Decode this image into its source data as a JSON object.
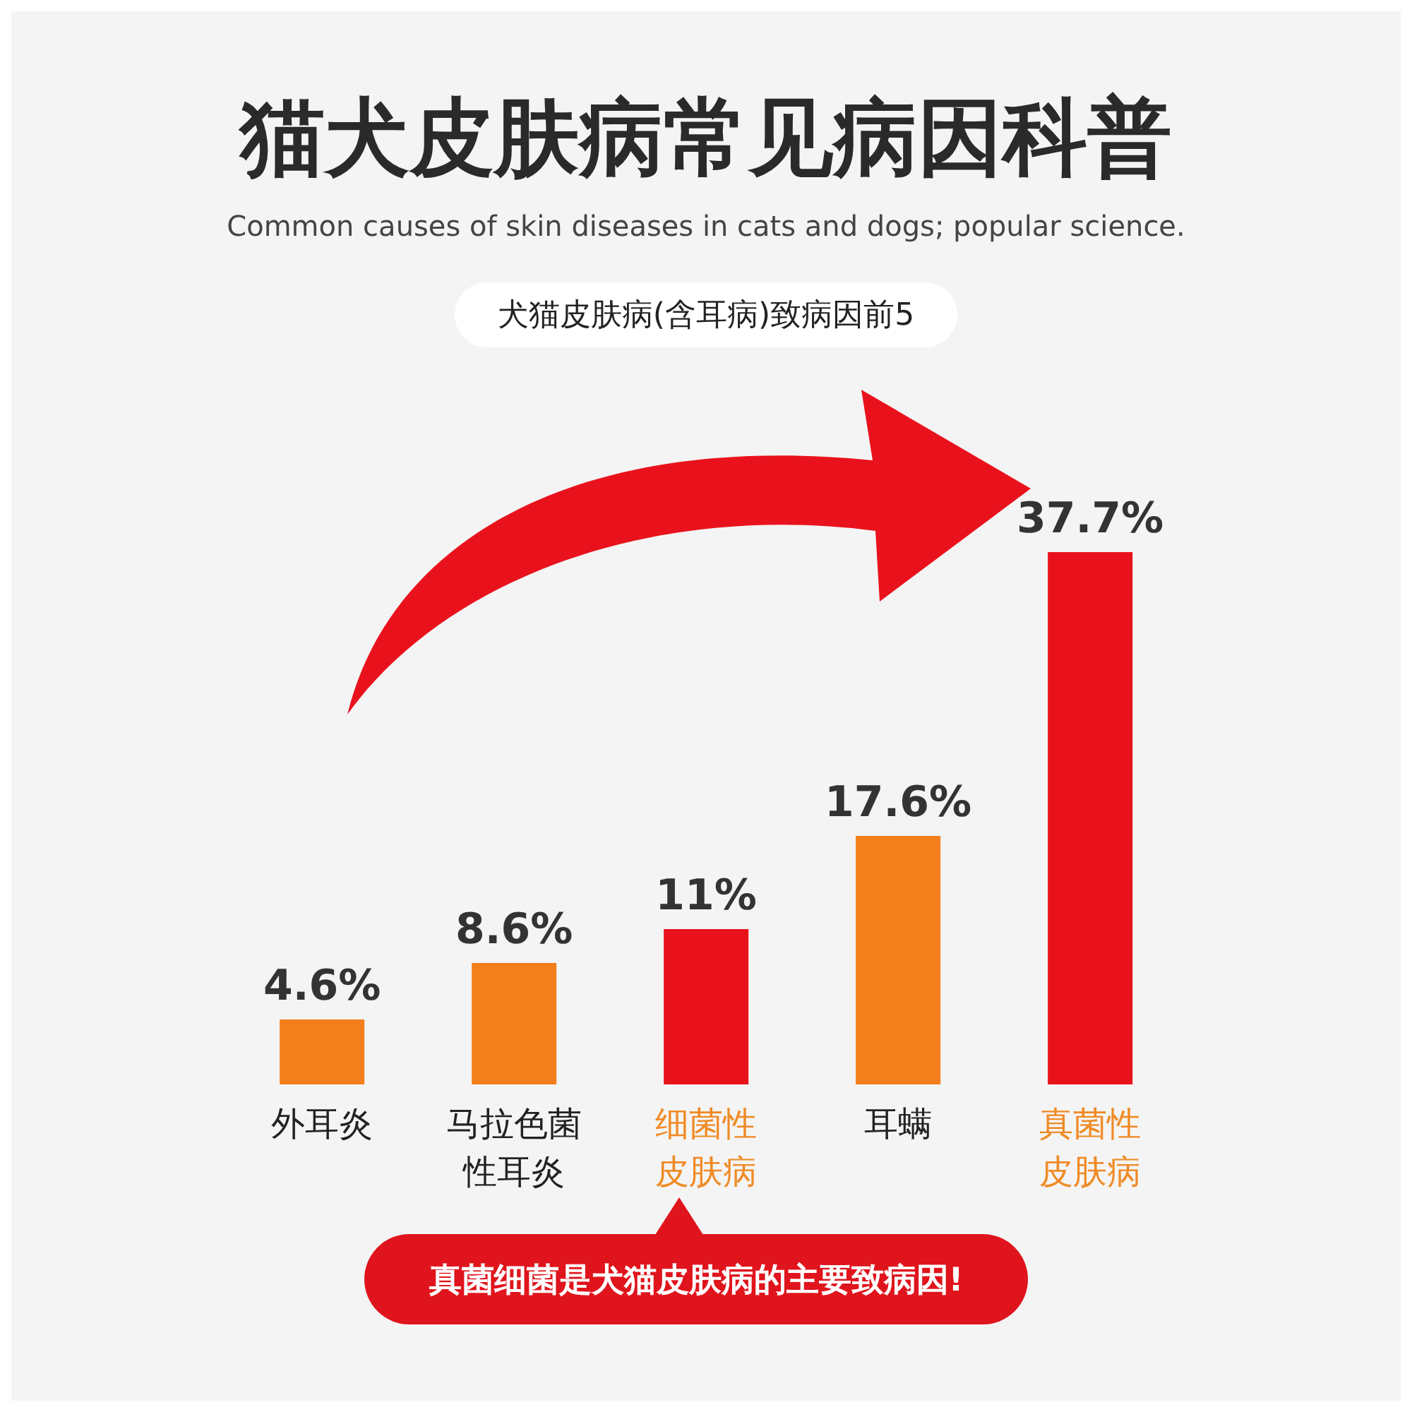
{
  "chart_data": {
    "type": "bar",
    "title": "猫犬皮肤病常见病因科普",
    "subtitle": "Common causes of skin diseases in cats and dogs; popular science.",
    "annotations": [
      "犬猫皮肤病(含耳病)致病因前5",
      "真菌细菌是犬猫皮肤病的主要致病因!"
    ],
    "categories": [
      "外耳炎",
      "马拉色菌性耳炎",
      "细菌性皮肤病",
      "耳螨",
      "真菌性皮肤病"
    ],
    "values": [
      4.6,
      8.6,
      11,
      17.6,
      37.7
    ],
    "colors": [
      "#f27f1b",
      "#f27f1b",
      "#e9121c",
      "#f27f1b",
      "#e9121c"
    ],
    "value_labels": [
      "4.6%",
      "8.6%",
      "11%",
      "17.6%",
      "37.7%"
    ]
  }
}
